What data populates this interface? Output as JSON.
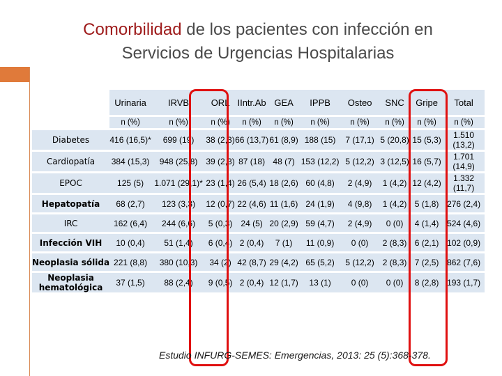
{
  "title": {
    "accent": "Comorbilidad",
    "rest_line1": " de los pacientes con infección en",
    "line2": "Servicios de Urgencias Hospitalarias"
  },
  "table": {
    "columns": [
      "Urinaria",
      "IRVB",
      "ORL",
      "IIntr.Ab",
      "GEA",
      "IPPB",
      "Osteo",
      "SNC",
      "Gripe",
      "Total"
    ],
    "subheader": [
      "n (%)",
      "n (%)",
      "n (%)",
      "n (%)",
      "n (%)",
      "n (%)",
      "n (%)",
      "n (%)",
      "n (%)",
      "n (%)"
    ],
    "rows": [
      {
        "label": "Diabetes",
        "cells": [
          "416 (16,5)*",
          "699 (19)",
          "38 (2,3)",
          "66 (13,7)",
          "61 (8,9)",
          "188 (15)",
          "7 (17,1)",
          "5 (20,8)",
          "15 (5,3)",
          "1.510 (13,2)"
        ]
      },
      {
        "label": "Cardiopatía",
        "cells": [
          "384 (15,3)",
          "948 (25,8)",
          "39 (2,3)",
          "87 (18)",
          "48 (7)",
          "153 (12,2)",
          "5 (12,2)",
          "3 (12,5)",
          "16 (5,7)",
          "1.701 (14,9)"
        ]
      },
      {
        "label": "EPOC",
        "cells": [
          "125 (5)",
          "1.071 (29,1)*",
          "23 (1,4)",
          "26 (5,4)",
          "18 (2,6)",
          "60 (4,8)",
          "2 (4,9)",
          "1 (4,2)",
          "12 (4,2)",
          "1.332 (11,7)"
        ]
      },
      {
        "label": "Hepatopatía",
        "cells": [
          "68 (2,7)",
          "123 (3,3)",
          "12 (0,7)",
          "22 (4,6)",
          "11 (1,6)",
          "24 (1,9)",
          "4 (9,8)",
          "1 (4,2)",
          "5 (1,8)",
          "276 (2,4)"
        ]
      },
      {
        "label": "IRC",
        "cells": [
          "162 (6,4)",
          "244 (6,6)",
          "5 (0,3)",
          "24 (5)",
          "20 (2,9)",
          "59 (4,7)",
          "2 (4,9)",
          "0 (0)",
          "4 (1,4)",
          "524 (4,6)"
        ]
      },
      {
        "label": "Infección VIH",
        "cells": [
          "10 (0,4)",
          "51 (1,4)",
          "6 (0,4)",
          "2 (0,4)",
          "7 (1)",
          "11 (0,9)",
          "0 (0)",
          "2 (8,3)",
          "6 (2,1)",
          "102 (0,9)"
        ]
      },
      {
        "label": "Neoplasia sólida",
        "cells": [
          "221 (8,8)",
          "380 (10,3)",
          "34 (2)",
          "42 (8,7)",
          "29 (4,2)",
          "65 (5,2)",
          "5 (12,2)",
          "2 (8,3)",
          "7 (2,5)",
          "862 (7,6)"
        ]
      },
      {
        "label": "Neoplasia hematológica",
        "cells": [
          "37 (1,5)",
          "88 (2,4)",
          "9 (0,5)",
          "2 (0,4)",
          "12 (1,7)",
          "13 (1)",
          "0 (0)",
          "0 (0)",
          "8 (2,8)",
          "193 (1,7)"
        ]
      }
    ]
  },
  "citation": "Estudio INFURG-SEMES: Emergencias, 2013: 25 (5):368-378."
}
